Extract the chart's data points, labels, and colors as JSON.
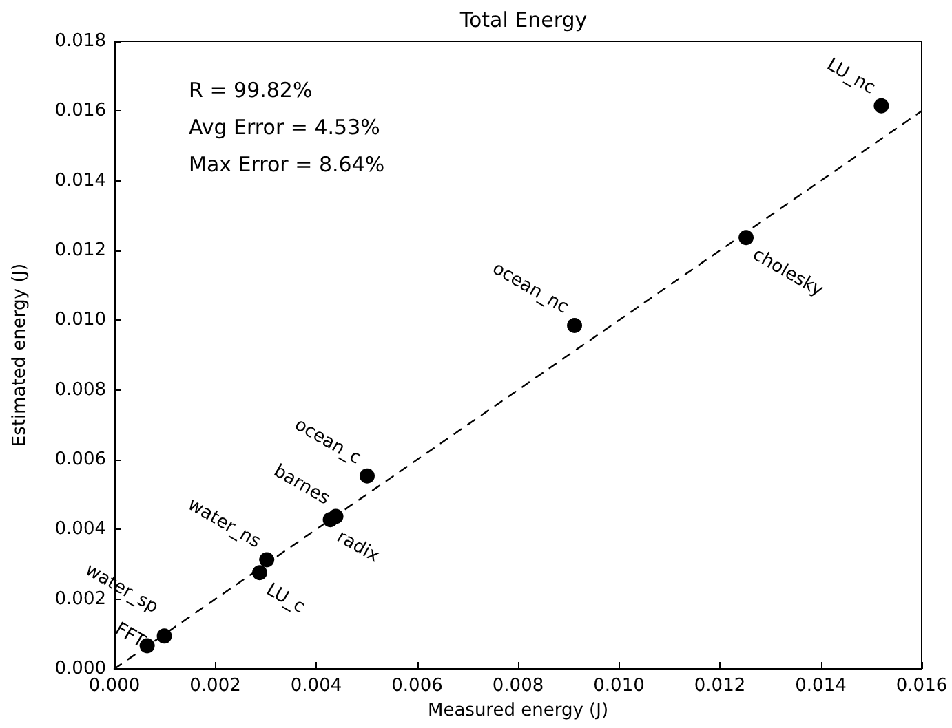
{
  "chart_data": {
    "type": "scatter",
    "title": "Total Energy",
    "xlabel": "Measured energy (J)",
    "ylabel": "Estimated energy (J)",
    "xlim": [
      0,
      0.016
    ],
    "ylim": [
      0,
      0.018
    ],
    "xticks": [
      {
        "value": 0,
        "label": "0.000"
      },
      {
        "value": 0.002,
        "label": "0.002"
      },
      {
        "value": 0.004,
        "label": "0.004"
      },
      {
        "value": 0.006,
        "label": "0.006"
      },
      {
        "value": 0.008,
        "label": "0.008"
      },
      {
        "value": 0.01,
        "label": "0.010"
      },
      {
        "value": 0.012,
        "label": "0.012"
      },
      {
        "value": 0.014,
        "label": "0.014"
      },
      {
        "value": 0.016,
        "label": "0.016"
      }
    ],
    "yticks": [
      {
        "value": 0,
        "label": "0.000"
      },
      {
        "value": 0.002,
        "label": "0.002"
      },
      {
        "value": 0.004,
        "label": "0.004"
      },
      {
        "value": 0.006,
        "label": "0.006"
      },
      {
        "value": 0.008,
        "label": "0.008"
      },
      {
        "value": 0.01,
        "label": "0.010"
      },
      {
        "value": 0.012,
        "label": "0.012"
      },
      {
        "value": 0.014,
        "label": "0.014"
      },
      {
        "value": 0.016,
        "label": "0.016"
      },
      {
        "value": 0.018,
        "label": "0.018"
      }
    ],
    "grid": false,
    "marker": "circle",
    "series": [
      {
        "color": "#000000",
        "x": [
          0.00065,
          0.00099,
          0.00288,
          0.00302,
          0.00428,
          0.00439,
          0.00501,
          0.00912,
          0.01252,
          0.0152
        ],
        "values": [
          0.00066,
          0.00094,
          0.00276,
          0.00313,
          0.00428,
          0.00437,
          0.00553,
          0.00985,
          0.01237,
          0.01615
        ]
      },
      {
        "type": "line",
        "color": "#000000",
        "line_style": "dashed",
        "marker": "none",
        "x": [
          0,
          0.016
        ],
        "values": [
          0,
          0.016
        ]
      }
    ],
    "annotations": [
      "R = 99.82%",
      "Avg Error = 4.53%",
      "Max Error = 8.64%",
      {
        "text": "FFT",
        "x": 0.00065,
        "y": 0.00066
      },
      {
        "text": "water_sp",
        "x": 0.00099,
        "y": 0.00094
      },
      {
        "text": "LU_c",
        "x": 0.00288,
        "y": 0.00276
      },
      {
        "text": "water_ns",
        "x": 0.00302,
        "y": 0.00313
      },
      {
        "text": "radix",
        "x": 0.00428,
        "y": 0.00428
      },
      {
        "text": "barnes",
        "x": 0.00439,
        "y": 0.00437
      },
      {
        "text": "ocean_c",
        "x": 0.00501,
        "y": 0.00553
      },
      {
        "text": "ocean_nc",
        "x": 0.00912,
        "y": 0.00985
      },
      {
        "text": "cholesky",
        "x": 0.01252,
        "y": 0.01237
      },
      {
        "text": "LU_nc",
        "x": 0.0152,
        "y": 0.01615
      }
    ]
  }
}
